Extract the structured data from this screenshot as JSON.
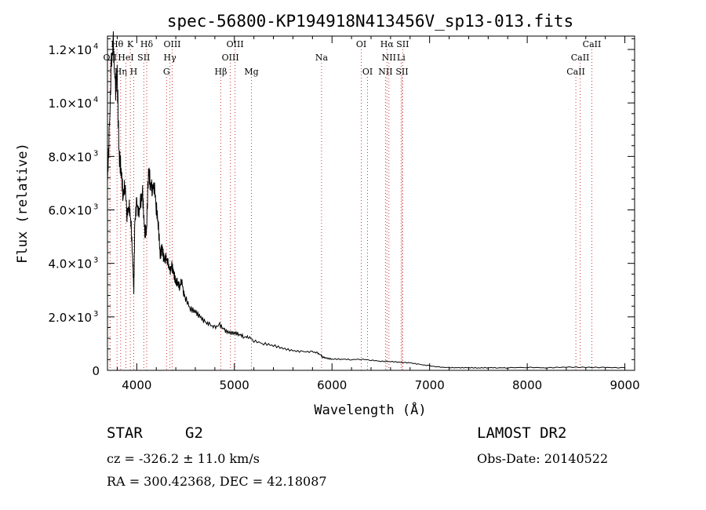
{
  "chart_data": {
    "type": "line",
    "title": "spec-56800-KP194918N413456V_sp13-013.fits",
    "xlabel": "Wavelength (Å)",
    "ylabel": "Flux (relative)",
    "xlim": [
      3700,
      9100
    ],
    "ylim": [
      0,
      12500
    ],
    "xticks": [
      4000,
      5000,
      6000,
      7000,
      8000,
      9000
    ],
    "yticks": [
      {
        "value": 0,
        "mant": "0",
        "exp": ""
      },
      {
        "value": 2000,
        "mant": "2.0×10",
        "exp": "3"
      },
      {
        "value": 4000,
        "mant": "4.0×10",
        "exp": "3"
      },
      {
        "value": 6000,
        "mant": "6.0×10",
        "exp": "3"
      },
      {
        "value": 8000,
        "mant": "8.0×10",
        "exp": "3"
      },
      {
        "value": 10000,
        "mant": "1.0×10",
        "exp": "4"
      },
      {
        "value": 12000,
        "mant": "1.2×10",
        "exp": "4"
      }
    ],
    "series": [
      {
        "x": [
          3700,
          3720,
          3740,
          3760,
          3780,
          3800,
          3820,
          3840,
          3860,
          3880,
          3900,
          3920,
          3940,
          3960,
          3970,
          3980,
          4000,
          4020,
          4040,
          4060,
          4080,
          4100,
          4120,
          4140,
          4160,
          4180,
          4200,
          4220,
          4240,
          4260,
          4280,
          4300,
          4320,
          4340,
          4360,
          4380,
          4400,
          4420,
          4440,
          4460,
          4480,
          4500,
          4550,
          4600,
          4650,
          4700,
          4750,
          4800,
          4850,
          4900,
          4950,
          5000,
          5050,
          5100,
          5150,
          5200,
          5300,
          5400,
          5500,
          5600,
          5700,
          5800,
          5850,
          5890,
          5900,
          5950,
          6000,
          6100,
          6200,
          6300,
          6400,
          6500,
          6600,
          6700,
          6800,
          6900,
          7000,
          7100,
          7200,
          7300,
          7400,
          7500,
          7600,
          7700,
          7800,
          8000,
          8200,
          8400,
          8600,
          8800,
          9000
        ],
        "y": [
          7000,
          9000,
          11500,
          12200,
          10500,
          11000,
          8000,
          7500,
          6500,
          7000,
          5800,
          6200,
          5600,
          4000,
          2900,
          5500,
          6300,
          5800,
          6300,
          6600,
          5200,
          5200,
          7500,
          7000,
          6800,
          6900,
          6100,
          5500,
          4300,
          4600,
          4100,
          4200,
          4000,
          3700,
          3900,
          3600,
          3300,
          3300,
          3100,
          3400,
          2900,
          2700,
          2300,
          2200,
          2000,
          1800,
          1700,
          1600,
          1700,
          1500,
          1400,
          1400,
          1350,
          1250,
          1250,
          1100,
          1000,
          930,
          820,
          730,
          700,
          690,
          650,
          560,
          500,
          450,
          420,
          420,
          400,
          420,
          380,
          340,
          330,
          300,
          280,
          220,
          170,
          120,
          100,
          95,
          100,
          90,
          100,
          95,
          95,
          110,
          95,
          120,
          110,
          105,
          95
        ]
      }
    ],
    "lines": [
      {
        "name": "Hθ",
        "wl": 3798,
        "row": 0
      },
      {
        "name": "OII",
        "wl": 3727,
        "row": 1
      },
      {
        "name": "Hη",
        "wl": 3835,
        "row": 2
      },
      {
        "name": "K",
        "wl": 3934,
        "row": 0
      },
      {
        "name": "HeI",
        "wl": 3889,
        "row": 1
      },
      {
        "name": "H",
        "wl": 3969,
        "row": 2
      },
      {
        "name": "Hδ",
        "wl": 4102,
        "row": 0
      },
      {
        "name": "SII",
        "wl": 4072,
        "row": 1
      },
      {
        "name": "OIII",
        "wl": 4363,
        "row": 0
      },
      {
        "name": "Hγ",
        "wl": 4340,
        "row": 1
      },
      {
        "name": "G",
        "wl": 4305,
        "row": 2
      },
      {
        "name": "OIII",
        "wl": 5007,
        "row": 0
      },
      {
        "name": "OIII",
        "wl": 4959,
        "row": 1
      },
      {
        "name": "Hβ",
        "wl": 4861,
        "row": 2
      },
      {
        "name": "Mg",
        "wl": 5175,
        "row": 2
      },
      {
        "name": "Na",
        "wl": 5893,
        "row": 1
      },
      {
        "name": "OI",
        "wl": 6300,
        "row": 0
      },
      {
        "name": "OI",
        "wl": 6364,
        "row": 2
      },
      {
        "name": "Hα",
        "wl": 6563,
        "row": 0
      },
      {
        "name": "SII",
        "wl": 6724,
        "row": 0
      },
      {
        "name": "NII",
        "wl": 6583,
        "row": 1
      },
      {
        "name": "Li",
        "wl": 6708,
        "row": 1
      },
      {
        "name": "NII",
        "wl": 6548,
        "row": 2
      },
      {
        "name": "SII",
        "wl": 6717,
        "row": 2
      },
      {
        "name": "CaII",
        "wl": 8662,
        "row": 0
      },
      {
        "name": "CaII",
        "wl": 8542,
        "row": 1
      },
      {
        "name": "CaII",
        "wl": 8498,
        "row": 2
      }
    ]
  },
  "info": {
    "class": "STAR",
    "subclass": "G2",
    "survey": "LAMOST DR2",
    "cz": "cz = -326.2 ± 11.0 km/s",
    "obsdate": "Obs-Date: 20140522",
    "radec": "RA = 300.42368, DEC =  42.18087"
  }
}
